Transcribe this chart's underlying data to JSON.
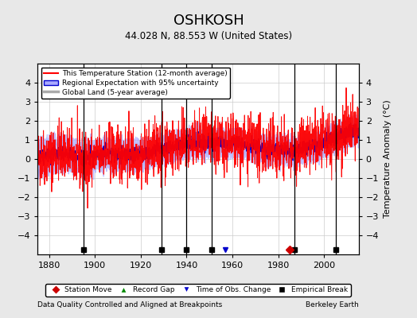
{
  "title": "OSHKOSH",
  "subtitle": "44.028 N, 88.553 W (United States)",
  "xlabel_left": "Data Quality Controlled and Aligned at Breakpoints",
  "xlabel_right": "Berkeley Earth",
  "ylabel": "Temperature Anomaly (°C)",
  "ylim": [
    -5,
    5
  ],
  "xlim": [
    1875,
    2015
  ],
  "xticks": [
    1880,
    1900,
    1920,
    1940,
    1960,
    1980,
    2000
  ],
  "yticks": [
    -4,
    -3,
    -2,
    -1,
    0,
    1,
    2,
    3,
    4
  ],
  "background_color": "#e8e8e8",
  "plot_bg_color": "#ffffff",
  "grid_color": "#cccccc",
  "station_line_color": "#ff0000",
  "regional_line_color": "#0000cc",
  "regional_fill_color": "#aaaaff",
  "global_line_color": "#aaaaaa",
  "empirical_break_years": [
    1895,
    1929,
    1940,
    1951,
    1987,
    2005
  ],
  "station_move_years": [
    1985
  ],
  "time_obs_years": [
    1957
  ],
  "record_gap_years": [],
  "top_legend": [
    {
      "label": "This Temperature Station (12-month average)",
      "color": "#ff0000",
      "lw": 1.5
    },
    {
      "label": "Regional Expectation with 95% uncertainty",
      "color": "#0000cc",
      "fill": "#aaaaff"
    },
    {
      "label": "Global Land (5-year average)",
      "color": "#aaaaaa",
      "lw": 2.5
    }
  ],
  "bottom_legend": [
    {
      "label": "Station Move",
      "marker": "D",
      "color": "#cc0000"
    },
    {
      "label": "Record Gap",
      "marker": "^",
      "color": "#008800"
    },
    {
      "label": "Time of Obs. Change",
      "marker": "v",
      "color": "#0000cc"
    },
    {
      "label": "Empirical Break",
      "marker": "s",
      "color": "#000000"
    }
  ]
}
